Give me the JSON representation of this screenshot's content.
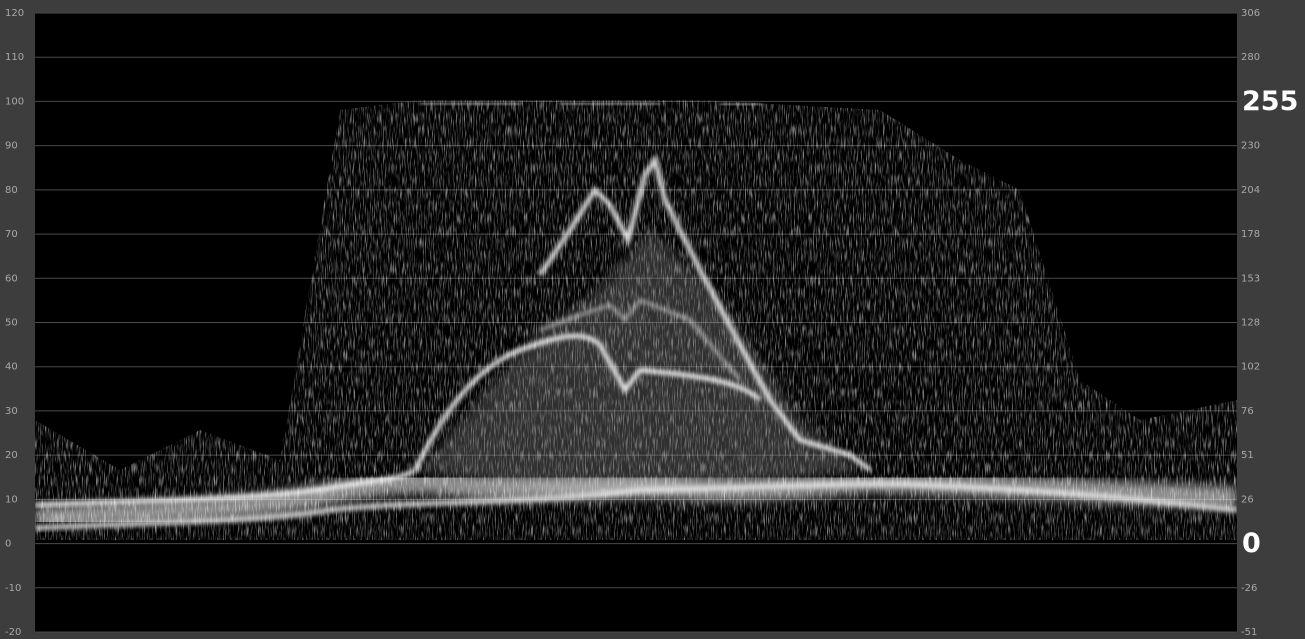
{
  "scope": {
    "left_ticks": [
      120,
      110,
      100,
      90,
      80,
      70,
      60,
      50,
      40,
      30,
      20,
      10,
      0,
      -10,
      -20
    ],
    "right_ticks": [
      {
        "label": "306",
        "highlight": false
      },
      {
        "label": "280",
        "highlight": false
      },
      {
        "label": "255",
        "highlight": true
      },
      {
        "label": "230",
        "highlight": false
      },
      {
        "label": "204",
        "highlight": false
      },
      {
        "label": "178",
        "highlight": false
      },
      {
        "label": "153",
        "highlight": false
      },
      {
        "label": "128",
        "highlight": false
      },
      {
        "label": "102",
        "highlight": false
      },
      {
        "label": "76",
        "highlight": false
      },
      {
        "label": "51",
        "highlight": false
      },
      {
        "label": "26",
        "highlight": false
      },
      {
        "label": "0",
        "highlight": true
      },
      {
        "label": "-26",
        "highlight": false
      },
      {
        "label": "-51",
        "highlight": false
      }
    ]
  }
}
